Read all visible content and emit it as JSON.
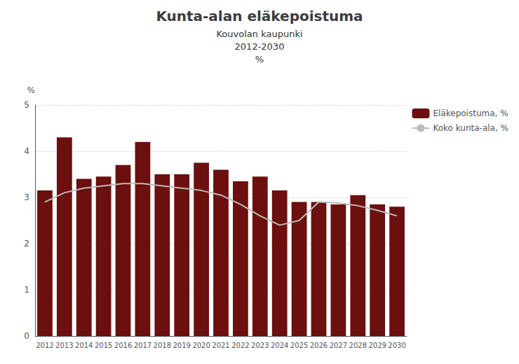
{
  "chart_data": {
    "type": "bar",
    "title": "Kunta-alan eläkepoistuma",
    "subtitle": [
      "Kouvolan kaupunki",
      "2012-2030",
      "%"
    ],
    "ylabel": "%",
    "categories": [
      "2012",
      "2013",
      "2014",
      "2015",
      "2016",
      "2017",
      "2018",
      "2019",
      "2020",
      "2021",
      "2022",
      "2023",
      "2024",
      "2025",
      "2026",
      "2027",
      "2028",
      "2029",
      "2030"
    ],
    "series": [
      {
        "name": "Eläkepoistuma, %",
        "type": "bar",
        "color": "#6B0F0F",
        "values": [
          3.15,
          4.3,
          3.4,
          3.45,
          3.7,
          4.2,
          3.5,
          3.5,
          3.75,
          3.6,
          3.35,
          3.45,
          3.15,
          2.9,
          2.9,
          2.85,
          3.05,
          2.85,
          2.8
        ]
      },
      {
        "name": "Koko kunta-ala, %",
        "type": "line",
        "color": "#BBBBBB",
        "values": [
          2.9,
          3.1,
          3.2,
          3.25,
          3.3,
          3.3,
          3.25,
          3.2,
          3.15,
          3.05,
          2.85,
          2.6,
          2.4,
          2.5,
          2.9,
          2.88,
          2.82,
          2.72,
          2.6
        ]
      }
    ],
    "ylim": [
      0,
      5
    ],
    "yticks": [
      0,
      1,
      2,
      3,
      4,
      5
    ],
    "grid": true,
    "legend": "right"
  }
}
